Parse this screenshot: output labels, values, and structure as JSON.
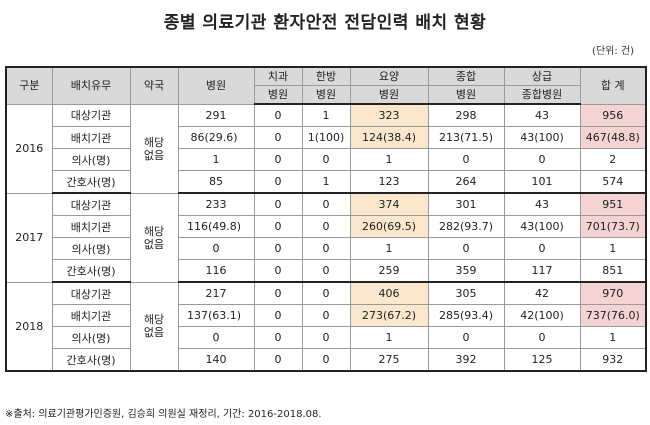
{
  "title": "종별 의료기관 환자안전 전담인력 배치 현황",
  "unit": "(단위: 건)",
  "headers": {
    "year": "구분",
    "type": "배치유무",
    "pharmacy": "약국",
    "hospital": "병원",
    "dental_1": "치과",
    "dental_2": "병원",
    "oriental_1": "한방",
    "oriental_2": "병원",
    "nursing_1": "요양",
    "nursing_2": "병원",
    "general_1": "종합",
    "general_2": "병원",
    "tertiary_1": "상급",
    "tertiary_2": "종합병원",
    "total": "합 계"
  },
  "row_labels": [
    "대상기관",
    "배치기관",
    "의사(명)",
    "간호사(명)"
  ],
  "pharmacy_label_1": "해당",
  "pharmacy_label_2": "없음",
  "groups": [
    {
      "year": "2016",
      "rows": [
        [
          "291",
          "0",
          "1",
          "323",
          "298",
          "43",
          "956"
        ],
        [
          "86(29.6)",
          "0",
          "1(100)",
          "124(38.4)",
          "213(71.5)",
          "43(100)",
          "467(48.8)"
        ],
        [
          "1",
          "0",
          "0",
          "1",
          "0",
          "0",
          "2"
        ],
        [
          "85",
          "0",
          "1",
          "123",
          "264",
          "101",
          "574"
        ]
      ]
    },
    {
      "year": "2017",
      "rows": [
        [
          "233",
          "0",
          "0",
          "374",
          "301",
          "43",
          "951"
        ],
        [
          "116(49.8)",
          "0",
          "0",
          "260(69.5)",
          "282(93.7)",
          "43(100)",
          "701(73.7)"
        ],
        [
          "0",
          "0",
          "0",
          "1",
          "0",
          "0",
          "1"
        ],
        [
          "116",
          "0",
          "0",
          "259",
          "359",
          "117",
          "851"
        ]
      ]
    },
    {
      "year": "2018",
      "rows": [
        [
          "217",
          "0",
          "0",
          "406",
          "305",
          "42",
          "970"
        ],
        [
          "137(63.1)",
          "0",
          "0",
          "273(67.2)",
          "285(93.4)",
          "42(100)",
          "737(76.0)"
        ],
        [
          "0",
          "0",
          "0",
          "1",
          "0",
          "0",
          "1"
        ],
        [
          "140",
          "0",
          "0",
          "275",
          "392",
          "125",
          "932"
        ]
      ]
    }
  ],
  "footer": "※출처: 의료기관평가인증원, 김승희 의원실 재정리, 기간: 2016-2018.08.",
  "colors": {
    "header_bg": "#d9d9d9",
    "nursing_highlight": "#fbe7cc",
    "total_highlight": "#f6d3d3"
  }
}
